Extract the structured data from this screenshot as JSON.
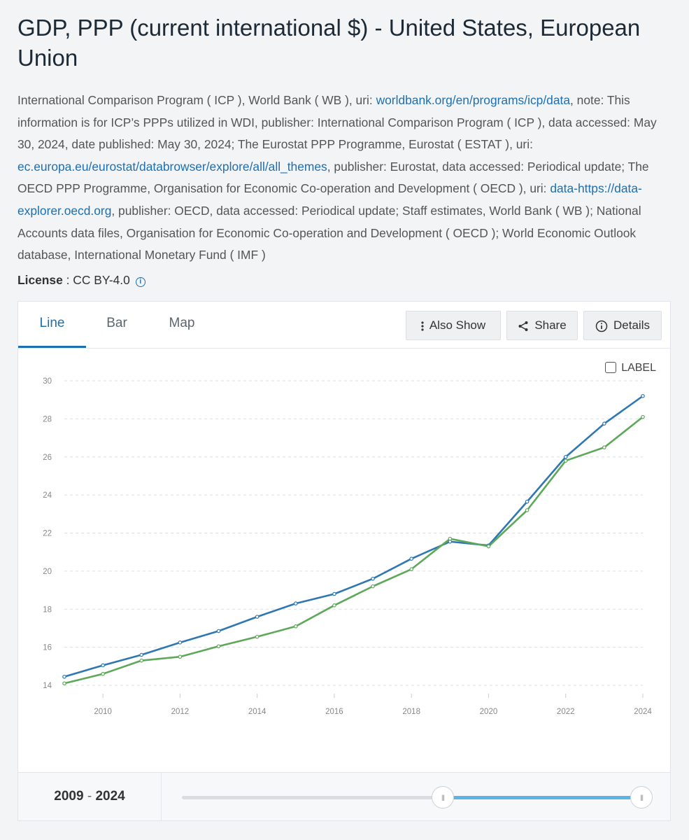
{
  "title": "GDP, PPP (current international $) - United States, European Union",
  "meta": {
    "t1": "International Comparison Program ( ICP ), World Bank ( WB ), uri: ",
    "l1": "worldbank.org/en/programs/icp/data",
    "t2": ", note: This information is for ICP’s PPPs utilized in WDI, publisher: International Comparison Program ( ICP ), data accessed: May 30, 2024, date published: May 30, 2024; The Eurostat PPP Programme, Eurostat ( ESTAT ), uri: ",
    "l2": "ec.europa.eu/eurostat/databrowser/explore/all/all_themes",
    "t3": ", publisher: Eurostat, data accessed: Periodical update; The OECD PPP Programme, Organisation for Economic Co-operation and Development ( OECD ), uri: ",
    "l3": "data-https://data-explorer.oecd.org",
    "t4": ", publisher: OECD, data accessed: Periodical update; Staff estimates, World Bank ( WB ); National Accounts data files, Organisation for Economic Co-operation and Development ( OECD ); World Economic Outlook database, International Monetary Fund ( IMF )"
  },
  "license": {
    "label": "License",
    "sep": " : ",
    "value": "CC BY-4.0",
    "icon": "info-icon"
  },
  "tabs": [
    "Line",
    "Bar",
    "Map"
  ],
  "toolbar": {
    "also_show": "Also Show",
    "share": "Share",
    "details": "Details"
  },
  "label_toggle": "LABEL",
  "range": {
    "start": "2009",
    "sep": " - ",
    "end": "2024"
  },
  "colors": {
    "us": "#2f77b3",
    "eu": "#5ea85a",
    "accent": "#1e6fb2",
    "grid": "#dcdfe3"
  },
  "chart_data": {
    "type": "line",
    "x": [
      2009,
      2010,
      2011,
      2012,
      2013,
      2014,
      2015,
      2016,
      2017,
      2018,
      2019,
      2020,
      2021,
      2022,
      2023,
      2024
    ],
    "series": [
      {
        "values": [
          14.45,
          15.05,
          15.6,
          16.25,
          16.85,
          17.6,
          18.3,
          18.8,
          19.6,
          20.65,
          21.55,
          21.35,
          23.65,
          26.0,
          27.75,
          29.2
        ]
      },
      {
        "values": [
          14.1,
          14.6,
          15.3,
          15.5,
          16.05,
          16.55,
          17.1,
          18.2,
          19.2,
          20.1,
          21.7,
          21.3,
          23.2,
          25.8,
          26.5,
          28.1
        ]
      }
    ],
    "xticks": [
      2010,
      2012,
      2014,
      2016,
      2018,
      2020,
      2022,
      2024
    ],
    "yticks": [
      14,
      16,
      18,
      20,
      22,
      24,
      26,
      28,
      30
    ],
    "ylim": [
      14,
      30
    ],
    "xlim": [
      2009,
      2024
    ],
    "grid": "horizontal-dashed",
    "legend": "none"
  }
}
